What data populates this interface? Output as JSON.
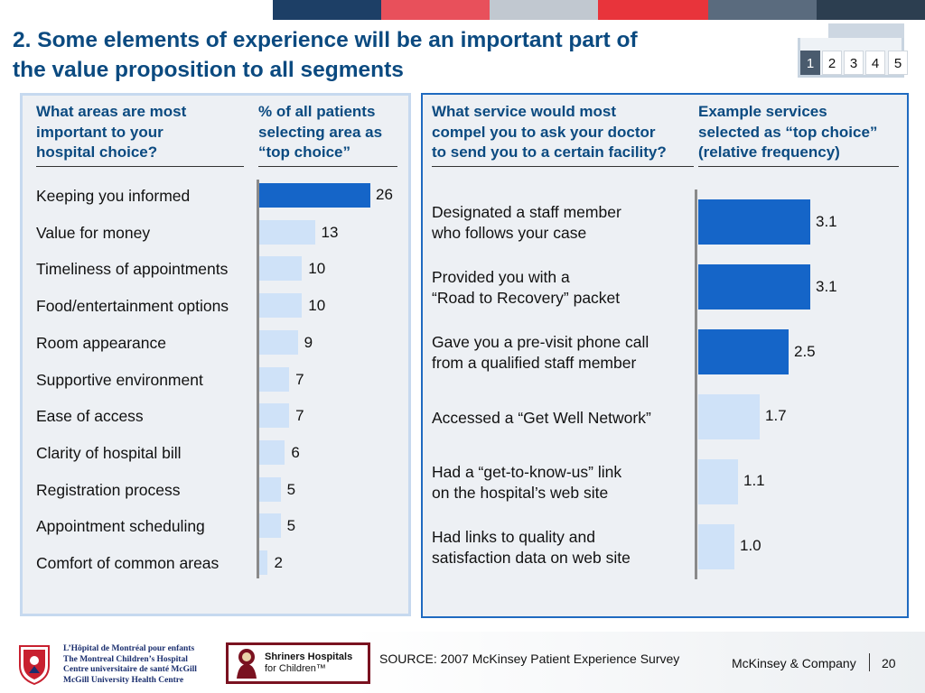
{
  "title": {
    "line1": "2. Some elements of experience will be an important part of",
    "line2": "the value proposition to all segments"
  },
  "page_tabs": [
    "1",
    "2",
    "3",
    "4",
    "5"
  ],
  "active_tab": "1",
  "colors": {
    "strip": [
      "#ffffff",
      "#1d3f66",
      "#e8505b",
      "#c1c8d0",
      "#e8343b",
      "#5a6b7e",
      "#2c3e50"
    ],
    "bar_highlight": "#1565c8",
    "bar_light": "#cfe2f8",
    "title": "#0b4a80"
  },
  "left_panel": {
    "header_areas": [
      "What areas are most",
      "important to your",
      "hospital choice?"
    ],
    "header_pct": [
      "% of all patients",
      "selecting area as",
      "“top choice”"
    ]
  },
  "right_panel": {
    "header_service": [
      "What service would most",
      "compel you to ask your doctor",
      "to send you to a certain facility?"
    ],
    "header_examples": [
      "Example services",
      "selected as “top choice”",
      "(relative frequency)"
    ]
  },
  "chart_data": [
    {
      "type": "bar",
      "orientation": "horizontal",
      "title": "% of all patients selecting area as “top choice”",
      "categories": [
        "Keeping you informed",
        "Value for money",
        "Timeliness of appointments",
        "Food/entertainment options",
        "Room appearance",
        "Supportive environment",
        "Ease of access",
        "Clarity of hospital bill",
        "Registration process",
        "Appointment scheduling",
        "Comfort of common areas"
      ],
      "values": [
        26,
        13,
        10,
        10,
        9,
        7,
        7,
        6,
        5,
        5,
        2
      ],
      "value_labels": [
        "26",
        "13",
        "10",
        "10",
        "9",
        "7",
        "7",
        "6",
        "5",
        "5",
        "2"
      ],
      "highlighted": [
        true,
        false,
        false,
        false,
        false,
        false,
        false,
        false,
        false,
        false,
        false
      ]
    },
    {
      "type": "bar",
      "orientation": "horizontal",
      "title": "Example services selected as “top choice” (relative frequency)",
      "categories": [
        [
          "Designated a staff member",
          "who follows your case"
        ],
        [
          "Provided you with a",
          "“Road to Recovery” packet"
        ],
        [
          "Gave you a pre-visit phone call",
          "from a qualified staff member"
        ],
        [
          "Accessed a “Get Well Network”"
        ],
        [
          "Had a “get-to-know-us” link",
          "on the hospital’s web site"
        ],
        [
          "Had links to quality and",
          "satisfaction data on web site"
        ]
      ],
      "values": [
        3.1,
        3.1,
        2.5,
        1.7,
        1.1,
        1.0
      ],
      "value_labels": [
        "3.1",
        "3.1",
        "2.5",
        "1.7",
        "1.1",
        "1.0"
      ],
      "highlighted": [
        true,
        true,
        true,
        false,
        false,
        false
      ]
    }
  ],
  "footer": {
    "source": "SOURCE: 2007 McKinsey Patient Experience Survey",
    "company": "McKinsey & Company",
    "page": "20",
    "logo_hospital": [
      "L’Hôpital de Montréal pour enfants",
      "The Montreal Children’s Hospital",
      "Centre universitaire de santé McGill",
      "McGill University Health Centre"
    ],
    "logo_shriners": [
      "Shriners Hospitals",
      "for Children™"
    ]
  }
}
